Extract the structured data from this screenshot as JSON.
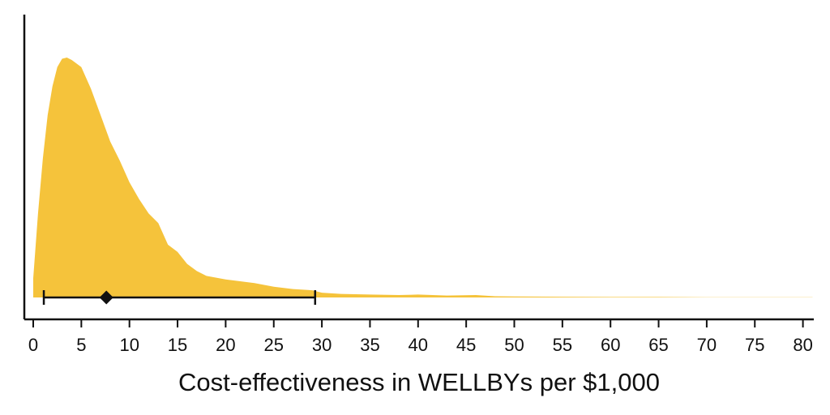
{
  "chart_data": {
    "type": "area",
    "title": "",
    "xlabel": "Cost-effectiveness in WELLBYs per $1,000",
    "ylabel": "",
    "xlim": [
      -0.5,
      81
    ],
    "ylim": [
      0,
      1
    ],
    "x_ticks": [
      0,
      5,
      10,
      15,
      20,
      25,
      30,
      35,
      40,
      45,
      50,
      55,
      60,
      65,
      70,
      75,
      80
    ],
    "x_tick_labels": [
      "0",
      "5",
      "10",
      "15",
      "20",
      "25",
      "30",
      "35",
      "40",
      "45",
      "50",
      "55",
      "60",
      "65",
      "70",
      "75",
      "80"
    ],
    "grid": false,
    "fill_color": "#F5C33B",
    "density": {
      "x": [
        0,
        0.5,
        1,
        1.5,
        2,
        2.5,
        3,
        3.5,
        4,
        5,
        6,
        7,
        8,
        9,
        10,
        11,
        12,
        13,
        14,
        15,
        16,
        17,
        18,
        20,
        22,
        23,
        25,
        27,
        29,
        30,
        32,
        35,
        38,
        40,
        43,
        46,
        48,
        50,
        55,
        60,
        65,
        70,
        75,
        80,
        81
      ],
      "y": [
        0.08,
        0.35,
        0.58,
        0.76,
        0.88,
        0.96,
        0.995,
        1.0,
        0.99,
        0.96,
        0.87,
        0.76,
        0.65,
        0.57,
        0.48,
        0.41,
        0.35,
        0.31,
        0.22,
        0.19,
        0.14,
        0.11,
        0.09,
        0.075,
        0.065,
        0.06,
        0.045,
        0.035,
        0.03,
        0.02,
        0.015,
        0.012,
        0.01,
        0.012,
        0.008,
        0.01,
        0.005,
        0.004,
        0.003,
        0.002,
        0.002,
        0.001,
        0.001,
        0.001,
        0.001
      ]
    },
    "interval": {
      "low": 1.1,
      "high": 29.3,
      "point": 7.6
    }
  }
}
